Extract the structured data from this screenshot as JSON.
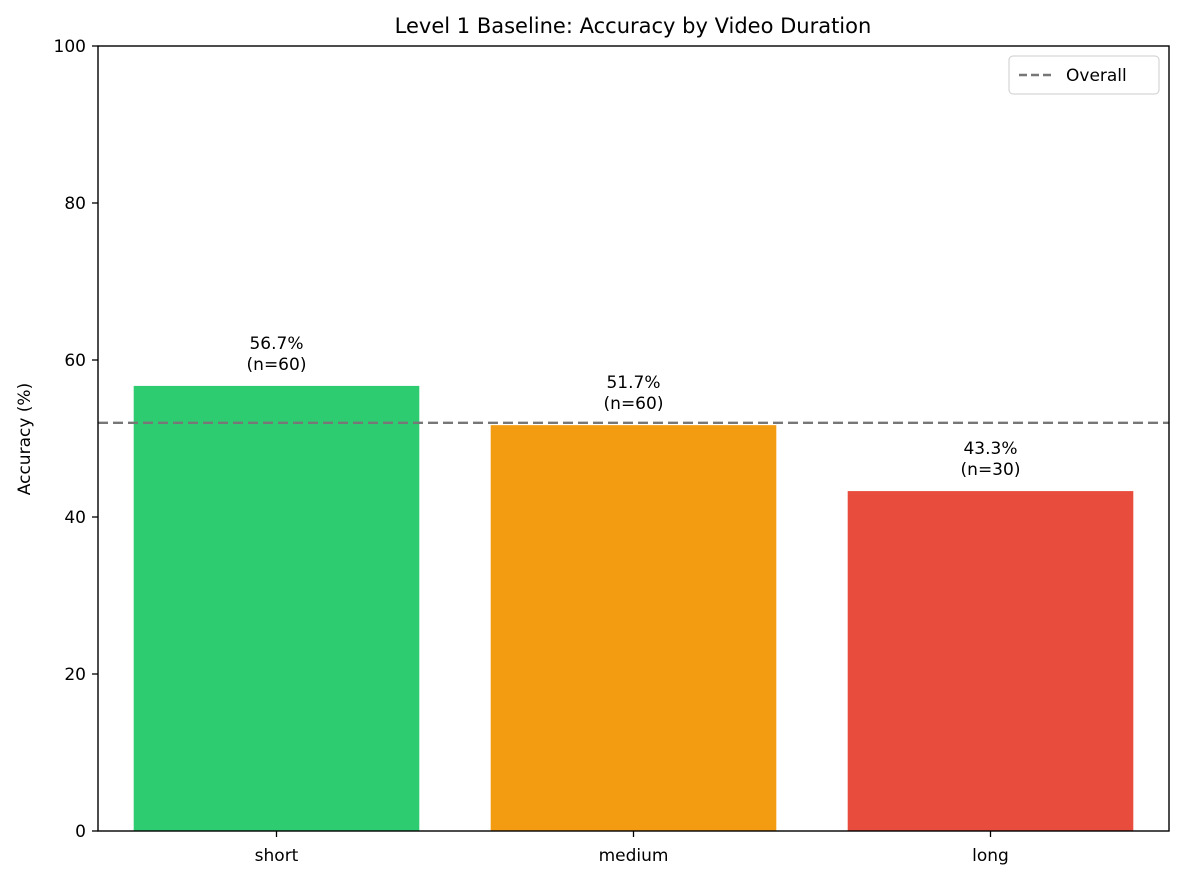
{
  "chart_data": {
    "type": "bar",
    "title": "Level 1 Baseline: Accuracy by Video Duration",
    "xlabel": "",
    "ylabel": "Accuracy (%)",
    "ylim": [
      0,
      100
    ],
    "yticks": [
      0,
      20,
      40,
      60,
      80,
      100
    ],
    "categories": [
      "short",
      "medium",
      "long"
    ],
    "values": [
      56.7,
      51.7,
      43.3
    ],
    "colors": [
      "#2ecc71",
      "#f39c12",
      "#e74c3c"
    ],
    "data_labels": [
      {
        "value": "56.7%",
        "n": "(n=60)"
      },
      {
        "value": "51.7%",
        "n": "(n=60)"
      },
      {
        "value": "43.3%",
        "n": "(n=30)"
      }
    ],
    "reference_line": {
      "label": "Overall",
      "value": 52.0,
      "style": "dashed",
      "color": "#777777"
    },
    "legend": {
      "position": "top-right",
      "entries": [
        "Overall"
      ]
    },
    "grid": false
  }
}
